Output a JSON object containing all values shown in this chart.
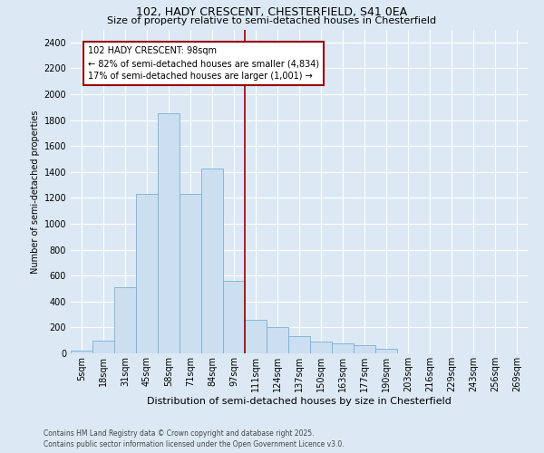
{
  "title1": "102, HADY CRESCENT, CHESTERFIELD, S41 0EA",
  "title2": "Size of property relative to semi-detached houses in Chesterfield",
  "xlabel": "Distribution of semi-detached houses by size in Chesterfield",
  "ylabel": "Number of semi-detached properties",
  "categories": [
    "5sqm",
    "18sqm",
    "31sqm",
    "45sqm",
    "58sqm",
    "71sqm",
    "84sqm",
    "97sqm",
    "111sqm",
    "124sqm",
    "137sqm",
    "150sqm",
    "163sqm",
    "177sqm",
    "190sqm",
    "203sqm",
    "216sqm",
    "229sqm",
    "243sqm",
    "256sqm",
    "269sqm"
  ],
  "bar_values": [
    18,
    100,
    510,
    1230,
    1850,
    1230,
    1430,
    560,
    260,
    200,
    130,
    90,
    75,
    60,
    35,
    0,
    0,
    0,
    0,
    0,
    0
  ],
  "bar_color": "#ccdff0",
  "bar_edge_color": "#7bafd4",
  "vline_x": 7.5,
  "vline_color": "#990000",
  "annotation_title": "102 HADY CRESCENT: 98sqm",
  "annotation_line1": "← 82% of semi-detached houses are smaller (4,834)",
  "annotation_line2": "17% of semi-detached houses are larger (1,001) →",
  "annotation_box_color": "#ffffff",
  "annotation_box_edge": "#990000",
  "ylim": [
    0,
    2500
  ],
  "yticks": [
    0,
    200,
    400,
    600,
    800,
    1000,
    1200,
    1400,
    1600,
    1800,
    2000,
    2200,
    2400
  ],
  "footnote1": "Contains HM Land Registry data © Crown copyright and database right 2025.",
  "footnote2": "Contains public sector information licensed under the Open Government Licence v3.0.",
  "bg_color": "#dce9f5",
  "plot_bg_color": "#dce9f5",
  "grid_color": "#ffffff",
  "title1_fontsize": 9,
  "title2_fontsize": 8,
  "ylabel_fontsize": 7,
  "xlabel_fontsize": 8,
  "tick_fontsize": 7,
  "annot_fontsize": 7,
  "footnote_fontsize": 5.5
}
